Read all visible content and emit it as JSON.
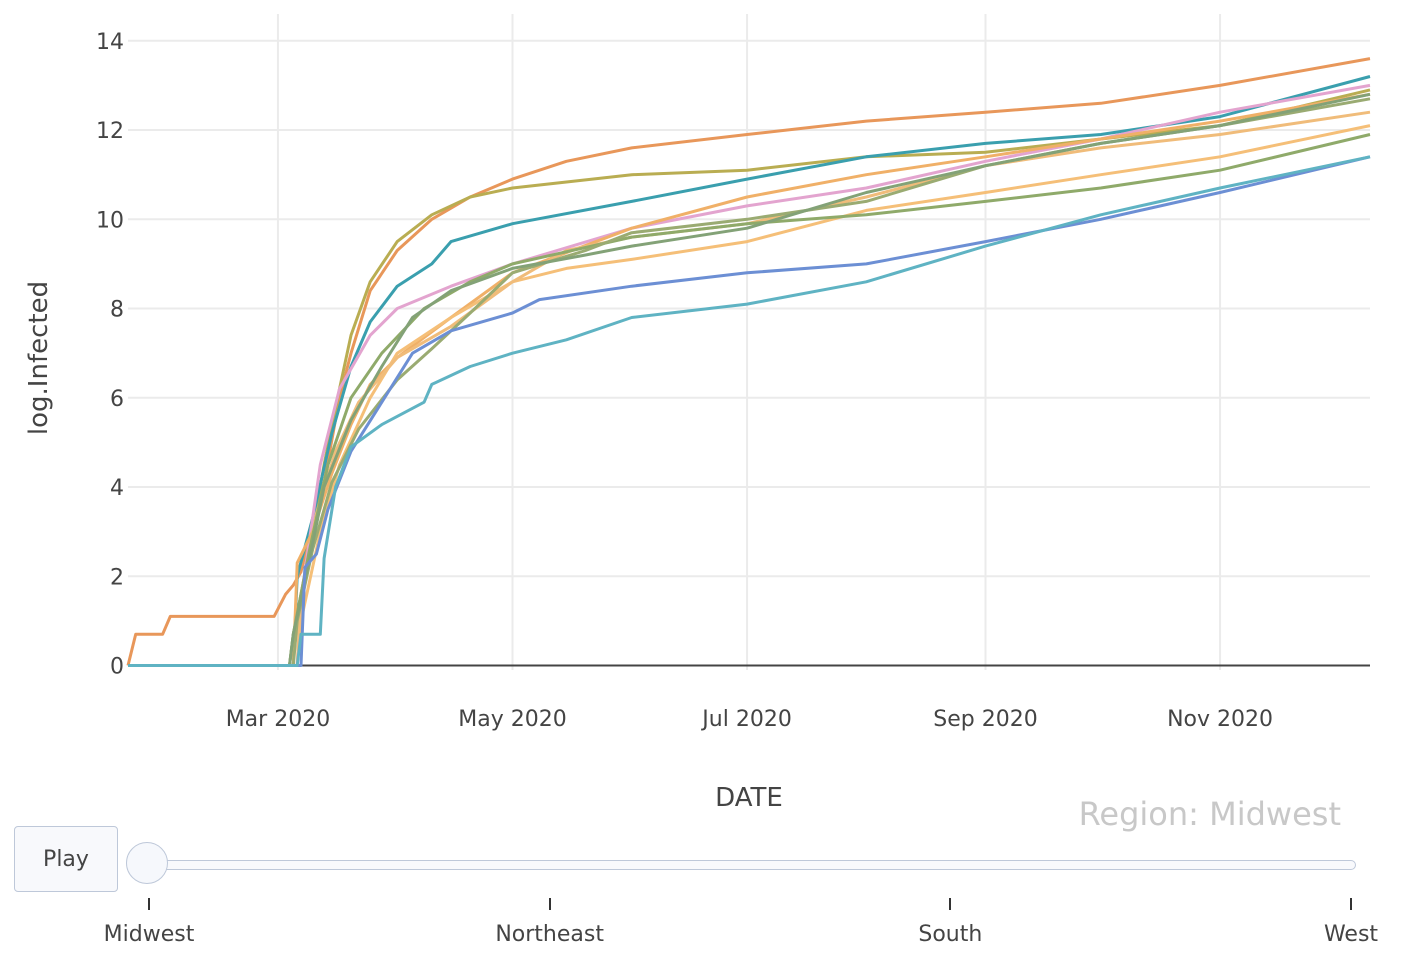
{
  "chart_data": {
    "type": "line",
    "title": "",
    "xlabel": "DATE",
    "ylabel": "log.Infected",
    "x_ticks": [
      "Mar 2020",
      "May 2020",
      "Jul 2020",
      "Sep 2020",
      "Nov 2020"
    ],
    "x_tick_dates": [
      "2020-03-01",
      "2020-05-01",
      "2020-07-01",
      "2020-09-01",
      "2020-11-01"
    ],
    "xlim": [
      "2020-01-22",
      "2020-12-10"
    ],
    "y_ticks": [
      0,
      2,
      4,
      6,
      8,
      10,
      12,
      14
    ],
    "ylim": [
      -0.1,
      14.6
    ],
    "grid": true,
    "legend": "none",
    "annotation": "Region: Midwest",
    "series": [
      {
        "color": "#e8975a",
        "points": [
          [
            "2020-01-22",
            0
          ],
          [
            "2020-01-24",
            0.7
          ],
          [
            "2020-01-31",
            0.7
          ],
          [
            "2020-02-02",
            1.1
          ],
          [
            "2020-02-29",
            1.1
          ],
          [
            "2020-03-03",
            1.6
          ],
          [
            "2020-03-05",
            1.8
          ],
          [
            "2020-03-07",
            2.1
          ],
          [
            "2020-03-10",
            3.2
          ],
          [
            "2020-03-13",
            4.1
          ],
          [
            "2020-03-17",
            6.0
          ],
          [
            "2020-03-20",
            7.0
          ],
          [
            "2020-03-25",
            8.4
          ],
          [
            "2020-04-01",
            9.3
          ],
          [
            "2020-04-10",
            10.0
          ],
          [
            "2020-04-20",
            10.5
          ],
          [
            "2020-05-01",
            10.9
          ],
          [
            "2020-05-15",
            11.3
          ],
          [
            "2020-06-01",
            11.6
          ],
          [
            "2020-07-01",
            11.9
          ],
          [
            "2020-08-01",
            12.2
          ],
          [
            "2020-09-01",
            12.4
          ],
          [
            "2020-10-01",
            12.6
          ],
          [
            "2020-11-01",
            13.0
          ],
          [
            "2020-12-10",
            13.6
          ]
        ]
      },
      {
        "color": "#b9ad52",
        "points": [
          [
            "2020-01-22",
            0
          ],
          [
            "2020-03-04",
            0
          ],
          [
            "2020-03-05",
            0.7
          ],
          [
            "2020-03-09",
            2.5
          ],
          [
            "2020-03-13",
            4.5
          ],
          [
            "2020-03-17",
            6.2
          ],
          [
            "2020-03-20",
            7.4
          ],
          [
            "2020-03-25",
            8.6
          ],
          [
            "2020-04-01",
            9.5
          ],
          [
            "2020-04-10",
            10.1
          ],
          [
            "2020-04-20",
            10.5
          ],
          [
            "2020-05-01",
            10.7
          ],
          [
            "2020-06-01",
            11.0
          ],
          [
            "2020-07-01",
            11.1
          ],
          [
            "2020-08-01",
            11.4
          ],
          [
            "2020-09-01",
            11.5
          ],
          [
            "2020-10-01",
            11.8
          ],
          [
            "2020-11-01",
            12.1
          ],
          [
            "2020-12-10",
            12.9
          ]
        ]
      },
      {
        "color": "#3a9fae",
        "points": [
          [
            "2020-01-22",
            0
          ],
          [
            "2020-03-05",
            0
          ],
          [
            "2020-03-06",
            2.0
          ],
          [
            "2020-03-10",
            3.3
          ],
          [
            "2020-03-15",
            5.2
          ],
          [
            "2020-03-20",
            6.7
          ],
          [
            "2020-03-25",
            7.7
          ],
          [
            "2020-04-01",
            8.5
          ],
          [
            "2020-04-10",
            9.0
          ],
          [
            "2020-04-15",
            9.5
          ],
          [
            "2020-05-01",
            9.9
          ],
          [
            "2020-06-01",
            10.4
          ],
          [
            "2020-07-01",
            10.9
          ],
          [
            "2020-08-01",
            11.4
          ],
          [
            "2020-09-01",
            11.7
          ],
          [
            "2020-10-01",
            11.9
          ],
          [
            "2020-11-01",
            12.3
          ],
          [
            "2020-12-10",
            13.2
          ]
        ]
      },
      {
        "color": "#e3a4cf",
        "points": [
          [
            "2020-01-22",
            0
          ],
          [
            "2020-03-06",
            0
          ],
          [
            "2020-03-07",
            1.5
          ],
          [
            "2020-03-12",
            4.5
          ],
          [
            "2020-03-17",
            6.2
          ],
          [
            "2020-03-25",
            7.4
          ],
          [
            "2020-04-01",
            8.0
          ],
          [
            "2020-04-15",
            8.5
          ],
          [
            "2020-05-01",
            9.0
          ],
          [
            "2020-06-01",
            9.8
          ],
          [
            "2020-07-01",
            10.3
          ],
          [
            "2020-08-01",
            10.7
          ],
          [
            "2020-09-01",
            11.3
          ],
          [
            "2020-10-01",
            11.8
          ],
          [
            "2020-11-01",
            12.4
          ],
          [
            "2020-12-10",
            13.0
          ]
        ]
      },
      {
        "color": "#f0b068",
        "points": [
          [
            "2020-01-22",
            0
          ],
          [
            "2020-03-05",
            0
          ],
          [
            "2020-03-06",
            2.3
          ],
          [
            "2020-03-10",
            3.0
          ],
          [
            "2020-03-15",
            4.3
          ],
          [
            "2020-03-20",
            5.4
          ],
          [
            "2020-03-25",
            6.3
          ],
          [
            "2020-04-01",
            6.9
          ],
          [
            "2020-04-15",
            7.8
          ],
          [
            "2020-05-01",
            8.8
          ],
          [
            "2020-06-01",
            9.8
          ],
          [
            "2020-07-01",
            10.5
          ],
          [
            "2020-08-01",
            11.0
          ],
          [
            "2020-09-01",
            11.4
          ],
          [
            "2020-10-01",
            11.8
          ],
          [
            "2020-11-01",
            12.2
          ],
          [
            "2020-12-10",
            12.8
          ]
        ]
      },
      {
        "color": "#f5bf78",
        "points": [
          [
            "2020-01-22",
            0
          ],
          [
            "2020-03-06",
            0
          ],
          [
            "2020-03-07",
            1.0
          ],
          [
            "2020-03-12",
            3.0
          ],
          [
            "2020-03-17",
            4.5
          ],
          [
            "2020-03-25",
            6.0
          ],
          [
            "2020-04-01",
            7.0
          ],
          [
            "2020-04-15",
            7.8
          ],
          [
            "2020-05-01",
            8.6
          ],
          [
            "2020-05-15",
            8.9
          ],
          [
            "2020-06-01",
            9.1
          ],
          [
            "2020-07-01",
            9.5
          ],
          [
            "2020-08-01",
            10.2
          ],
          [
            "2020-09-01",
            10.6
          ],
          [
            "2020-10-01",
            11.0
          ],
          [
            "2020-11-01",
            11.4
          ],
          [
            "2020-12-10",
            12.1
          ]
        ]
      },
      {
        "color": "#f0bc7a",
        "points": [
          [
            "2020-01-22",
            0
          ],
          [
            "2020-03-06",
            0
          ],
          [
            "2020-03-07",
            1.5
          ],
          [
            "2020-03-11",
            3.4
          ],
          [
            "2020-03-16",
            4.8
          ],
          [
            "2020-03-22",
            5.9
          ],
          [
            "2020-04-01",
            6.9
          ],
          [
            "2020-04-15",
            7.6
          ],
          [
            "2020-05-01",
            8.6
          ],
          [
            "2020-05-15",
            9.3
          ],
          [
            "2020-06-01",
            9.6
          ],
          [
            "2020-07-01",
            9.9
          ],
          [
            "2020-08-01",
            10.5
          ],
          [
            "2020-09-01",
            11.2
          ],
          [
            "2020-10-01",
            11.6
          ],
          [
            "2020-11-01",
            11.9
          ],
          [
            "2020-12-10",
            12.4
          ]
        ]
      },
      {
        "color": "#8faa6a",
        "points": [
          [
            "2020-01-22",
            0
          ],
          [
            "2020-03-04",
            0
          ],
          [
            "2020-03-05",
            0.7
          ],
          [
            "2020-03-09",
            2.5
          ],
          [
            "2020-03-14",
            4.5
          ],
          [
            "2020-03-20",
            6.0
          ],
          [
            "2020-03-28",
            7.0
          ],
          [
            "2020-04-08",
            8.0
          ],
          [
            "2020-04-20",
            8.6
          ],
          [
            "2020-05-01",
            9.0
          ],
          [
            "2020-06-01",
            9.6
          ],
          [
            "2020-07-01",
            9.9
          ],
          [
            "2020-08-01",
            10.1
          ],
          [
            "2020-09-01",
            10.4
          ],
          [
            "2020-10-01",
            10.7
          ],
          [
            "2020-11-01",
            11.1
          ],
          [
            "2020-12-10",
            11.9
          ]
        ]
      },
      {
        "color": "#9aab72",
        "points": [
          [
            "2020-01-22",
            0
          ],
          [
            "2020-03-05",
            0
          ],
          [
            "2020-03-06",
            1.0
          ],
          [
            "2020-03-10",
            2.6
          ],
          [
            "2020-03-15",
            4.1
          ],
          [
            "2020-03-22",
            5.3
          ],
          [
            "2020-04-01",
            6.4
          ],
          [
            "2020-04-10",
            7.1
          ],
          [
            "2020-04-20",
            7.9
          ],
          [
            "2020-05-01",
            8.8
          ],
          [
            "2020-05-20",
            9.3
          ],
          [
            "2020-06-01",
            9.7
          ],
          [
            "2020-07-01",
            10.0
          ],
          [
            "2020-08-01",
            10.4
          ],
          [
            "2020-09-01",
            11.2
          ],
          [
            "2020-10-01",
            11.7
          ],
          [
            "2020-11-01",
            12.1
          ],
          [
            "2020-12-10",
            12.7
          ]
        ]
      },
      {
        "color": "#83a277",
        "points": [
          [
            "2020-01-22",
            0
          ],
          [
            "2020-03-04",
            0
          ],
          [
            "2020-03-05",
            0.7
          ],
          [
            "2020-03-09",
            2.3
          ],
          [
            "2020-03-13",
            4.0
          ],
          [
            "2020-03-20",
            5.5
          ],
          [
            "2020-03-28",
            6.7
          ],
          [
            "2020-04-05",
            7.8
          ],
          [
            "2020-04-15",
            8.4
          ],
          [
            "2020-05-01",
            8.9
          ],
          [
            "2020-05-20",
            9.2
          ],
          [
            "2020-06-01",
            9.4
          ],
          [
            "2020-07-01",
            9.8
          ],
          [
            "2020-08-01",
            10.6
          ],
          [
            "2020-09-01",
            11.2
          ],
          [
            "2020-10-01",
            11.7
          ],
          [
            "2020-11-01",
            12.1
          ],
          [
            "2020-12-10",
            12.8
          ]
        ]
      },
      {
        "color": "#6c8fd4",
        "points": [
          [
            "2020-01-22",
            0
          ],
          [
            "2020-03-07",
            0
          ],
          [
            "2020-03-08",
            2.2
          ],
          [
            "2020-03-11",
            2.5
          ],
          [
            "2020-03-14",
            3.5
          ],
          [
            "2020-03-20",
            4.8
          ],
          [
            "2020-03-28",
            5.9
          ],
          [
            "2020-04-05",
            7.0
          ],
          [
            "2020-04-15",
            7.5
          ],
          [
            "2020-05-01",
            7.9
          ],
          [
            "2020-05-08",
            8.2
          ],
          [
            "2020-06-01",
            8.5
          ],
          [
            "2020-07-01",
            8.8
          ],
          [
            "2020-08-01",
            9.0
          ],
          [
            "2020-09-01",
            9.5
          ],
          [
            "2020-10-01",
            10.0
          ],
          [
            "2020-11-01",
            10.6
          ],
          [
            "2020-12-10",
            11.4
          ]
        ]
      },
      {
        "color": "#5fb3c3",
        "points": [
          [
            "2020-01-22",
            0
          ],
          [
            "2020-03-06",
            0
          ],
          [
            "2020-03-07",
            0.7
          ],
          [
            "2020-03-12",
            0.7
          ],
          [
            "2020-03-13",
            2.4
          ],
          [
            "2020-03-16",
            4.0
          ],
          [
            "2020-03-20",
            4.9
          ],
          [
            "2020-03-28",
            5.4
          ],
          [
            "2020-04-08",
            5.9
          ],
          [
            "2020-04-10",
            6.3
          ],
          [
            "2020-04-20",
            6.7
          ],
          [
            "2020-05-01",
            7.0
          ],
          [
            "2020-05-15",
            7.3
          ],
          [
            "2020-06-01",
            7.8
          ],
          [
            "2020-07-01",
            8.1
          ],
          [
            "2020-08-01",
            8.6
          ],
          [
            "2020-09-01",
            9.4
          ],
          [
            "2020-10-01",
            10.1
          ],
          [
            "2020-11-01",
            10.7
          ],
          [
            "2020-12-10",
            11.4
          ]
        ]
      }
    ]
  },
  "controls": {
    "play_label": "Play",
    "slider_steps": [
      "Midwest",
      "Northeast",
      "South",
      "West"
    ],
    "active_step": 0
  }
}
